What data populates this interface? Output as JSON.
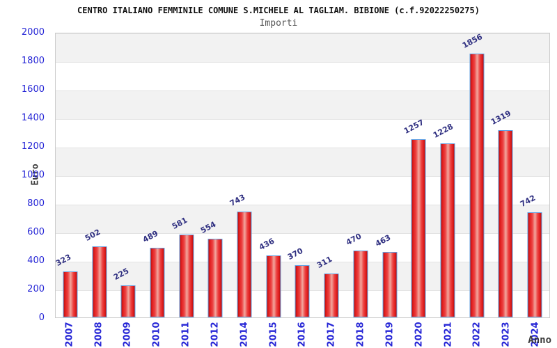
{
  "header": {
    "title": "CENTRO ITALIANO FEMMINILE COMUNE S.MICHELE AL TAGLIAM. BIBIONE (c.f.92022250275)",
    "subtitle": "Importi"
  },
  "chart_data": {
    "type": "bar",
    "title": "CENTRO ITALIANO FEMMINILE COMUNE S.MICHELE AL TAGLIAM. BIBIONE (c.f.92022250275)",
    "subtitle": "Importi",
    "xlabel": "Anno",
    "ylabel": "Euro",
    "categories": [
      "2007",
      "2008",
      "2009",
      "2010",
      "2011",
      "2012",
      "2014",
      "2015",
      "2016",
      "2017",
      "2018",
      "2019",
      "2020",
      "2021",
      "2022",
      "2023",
      "2024"
    ],
    "values": [
      323,
      502,
      225,
      489,
      581,
      554,
      743,
      436,
      370,
      311,
      470,
      463,
      1257,
      1228,
      1856,
      1319,
      742
    ],
    "ylim": [
      0,
      2000
    ],
    "yticks": [
      0,
      200,
      400,
      600,
      800,
      1000,
      1200,
      1400,
      1600,
      1800,
      2000
    ],
    "grid": "alternating horizontal bands with gridlines every 200",
    "legend_position": "none",
    "bar_value_labels_rotated": true,
    "missing_years_note": "2013 not present on axis",
    "colors": {
      "bar_fill": "#e21f1f",
      "bar_highlight": "#f2a79e",
      "bar_border": "#62a1e3",
      "tick_label": "#2525d6",
      "value_label": "#2e2e80",
      "band_gray": "#f2f2f2",
      "plot_border": "#cccccc",
      "title": "#111111",
      "subtitle": "#555555",
      "axis_title": "#3b3b3b"
    }
  }
}
